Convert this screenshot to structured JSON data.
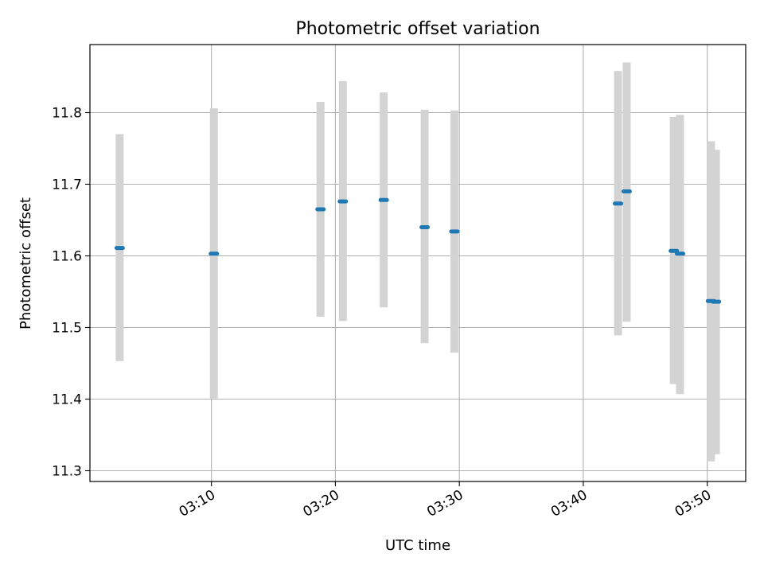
{
  "chart_data": {
    "type": "scatter",
    "title": "Photometric offset variation",
    "xlabel": "UTC time",
    "ylabel": "Photometric offset",
    "xlim": [
      "03:00:12",
      "03:53:06"
    ],
    "ylim": [
      11.285,
      11.895
    ],
    "x_ticks": [
      "03:10",
      "03:20",
      "03:30",
      "03:40",
      "03:50"
    ],
    "y_ticks": [
      11.3,
      11.4,
      11.5,
      11.6,
      11.7,
      11.8
    ],
    "grid": true,
    "marker_color": "#1f77b4",
    "errorbar_color": "#d3d3d3",
    "points": [
      {
        "x": "03:02:36",
        "y": 11.611,
        "ylow": 11.453,
        "yhigh": 11.77
      },
      {
        "x": "03:10:12",
        "y": 11.603,
        "ylow": 11.401,
        "yhigh": 11.806
      },
      {
        "x": "03:18:48",
        "y": 11.665,
        "ylow": 11.515,
        "yhigh": 11.815
      },
      {
        "x": "03:20:36",
        "y": 11.676,
        "ylow": 11.509,
        "yhigh": 11.844
      },
      {
        "x": "03:23:54",
        "y": 11.678,
        "ylow": 11.528,
        "yhigh": 11.828
      },
      {
        "x": "03:27:12",
        "y": 11.64,
        "ylow": 11.478,
        "yhigh": 11.804
      },
      {
        "x": "03:29:36",
        "y": 11.634,
        "ylow": 11.465,
        "yhigh": 11.803
      },
      {
        "x": "03:42:48",
        "y": 11.673,
        "ylow": 11.489,
        "yhigh": 11.858
      },
      {
        "x": "03:43:30",
        "y": 11.69,
        "ylow": 11.508,
        "yhigh": 11.87
      },
      {
        "x": "03:47:18",
        "y": 11.607,
        "ylow": 11.421,
        "yhigh": 11.794
      },
      {
        "x": "03:47:48",
        "y": 11.603,
        "ylow": 11.407,
        "yhigh": 11.797
      },
      {
        "x": "03:50:18",
        "y": 11.537,
        "ylow": 11.313,
        "yhigh": 11.76
      },
      {
        "x": "03:50:42",
        "y": 11.536,
        "ylow": 11.323,
        "yhigh": 11.748
      }
    ]
  }
}
